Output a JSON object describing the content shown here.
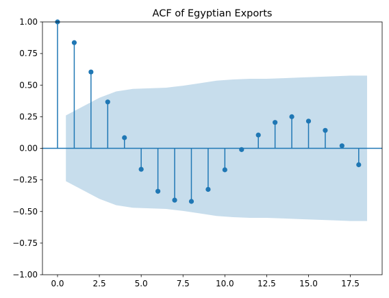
{
  "chart_data": {
    "type": "stem",
    "title": "ACF of Egyptian Exports",
    "xlabel": "",
    "ylabel": "",
    "xlim": [
      -0.9,
      19.4
    ],
    "ylim": [
      -1.0,
      1.0
    ],
    "x_ticks": [
      0.0,
      2.5,
      5.0,
      7.5,
      10.0,
      12.5,
      15.0,
      17.5
    ],
    "x_tick_labels": [
      "0.0",
      "2.5",
      "5.0",
      "7.5",
      "10.0",
      "12.5",
      "15.0",
      "17.5"
    ],
    "y_ticks": [
      -1.0,
      -0.75,
      -0.5,
      -0.25,
      0.0,
      0.25,
      0.5,
      0.75,
      1.0
    ],
    "y_tick_labels": [
      "−1.00",
      "−0.75",
      "−0.50",
      "−0.25",
      "0.00",
      "0.25",
      "0.50",
      "0.75",
      "1.00"
    ],
    "lags": [
      0,
      1,
      2,
      3,
      4,
      5,
      6,
      7,
      8,
      9,
      10,
      11,
      12,
      13,
      14,
      15,
      16,
      17,
      18
    ],
    "acf": [
      1.0,
      0.836,
      0.604,
      0.367,
      0.084,
      -0.166,
      -0.34,
      -0.41,
      -0.42,
      -0.325,
      -0.17,
      -0.01,
      0.105,
      0.205,
      0.25,
      0.215,
      0.142,
      0.02,
      -0.13
    ],
    "confidence_band": {
      "x": [
        0.5,
        1.5,
        2.5,
        3.5,
        4.5,
        5.5,
        6.5,
        7.5,
        8.5,
        9.5,
        10.5,
        11.5,
        12.5,
        13.5,
        14.5,
        15.5,
        16.5,
        17.5,
        18.5
      ],
      "upper": [
        0.26,
        0.33,
        0.4,
        0.45,
        0.47,
        0.475,
        0.48,
        0.495,
        0.515,
        0.535,
        0.545,
        0.55,
        0.55,
        0.555,
        0.56,
        0.565,
        0.57,
        0.575,
        0.575
      ],
      "lower": [
        -0.26,
        -0.33,
        -0.4,
        -0.45,
        -0.47,
        -0.475,
        -0.48,
        -0.495,
        -0.515,
        -0.535,
        -0.545,
        -0.55,
        -0.55,
        -0.555,
        -0.56,
        -0.565,
        -0.57,
        -0.575,
        -0.575
      ]
    },
    "grid": false,
    "legend": "none",
    "colors": {
      "stem": "#1f77b4",
      "marker": "#1f77b4",
      "band": "#1f77b4",
      "zero_line": "#1f77b4",
      "axes": "#000000"
    }
  }
}
